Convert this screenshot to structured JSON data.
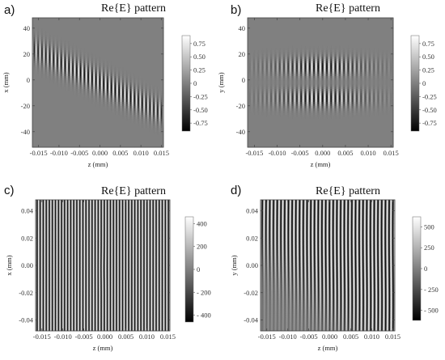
{
  "chart_data": [
    {
      "panel": "a)",
      "type": "heatmap",
      "title": "Re{E} pattern",
      "xlabel": "z (mm)",
      "ylabel": "x (mm)",
      "xlim": [
        -0.0165,
        0.0155
      ],
      "ylim": [
        -52,
        48
      ],
      "xticks": [
        -0.015,
        -0.01,
        -0.005,
        0.0,
        0.005,
        0.01,
        0.015
      ],
      "xtick_labels": [
        "-0.015",
        "-0.010",
        "-0.005",
        "0.000",
        "0.005",
        "0.010",
        "0.015"
      ],
      "yticks": [
        40,
        20,
        0,
        -20,
        -40
      ],
      "ytick_labels": [
        "40",
        "20",
        "0",
        "-20",
        "-40"
      ],
      "colorbar": {
        "range": [
          -0.9,
          0.9
        ],
        "ticks": [
          0.75,
          0.5,
          0.25,
          0,
          -0.25,
          -0.5,
          -0.75
        ],
        "tick_labels": [
          "0.75",
          "0.50",
          "0.25",
          "0",
          "-0.25",
          "-0.50",
          "-0.75"
        ]
      },
      "pattern": "single tilted beam, descending from x≈25 at z=-0.015 to x≈-25 at z=0.015"
    },
    {
      "panel": "b)",
      "type": "heatmap",
      "title": "Re{E} pattern",
      "xlabel": "z (mm)",
      "ylabel": "y (mm)",
      "xlim": [
        -0.0165,
        0.0155
      ],
      "ylim": [
        -52,
        48
      ],
      "xticks": [
        -0.015,
        -0.01,
        -0.005,
        0.0,
        0.005,
        0.01,
        0.015
      ],
      "xtick_labels": [
        "-0.015",
        "-0.010",
        "-0.005",
        "0.000",
        "0.005",
        "0.010",
        "0.015"
      ],
      "yticks": [
        40,
        20,
        0,
        -20,
        -40
      ],
      "ytick_labels": [
        "40",
        "20",
        "0",
        "-20",
        "-40"
      ],
      "colorbar": {
        "range": [
          -0.9,
          0.9
        ],
        "ticks": [
          0.75,
          0.5,
          0.25,
          0,
          -0.25,
          -0.5,
          -0.75
        ],
        "tick_labels": [
          "0.75",
          "0.50",
          "0.25",
          "0",
          "-0.25",
          "-0.50",
          "-0.75"
        ]
      },
      "pattern": "two lobes centred near y≈15 and y≈-15, strongest at z≈0"
    },
    {
      "panel": "c)",
      "type": "heatmap",
      "title": "Re{E} pattern",
      "xlabel": "z (mm)",
      "ylabel": "x (mm)",
      "xlim": [
        -0.0165,
        0.0155
      ],
      "ylim": [
        -0.048,
        0.048
      ],
      "xticks": [
        -0.015,
        -0.01,
        -0.005,
        0.0,
        0.005,
        0.01,
        0.015
      ],
      "xtick_labels": [
        "-0.015",
        "-0.010",
        "-0.005",
        "0.000",
        "0.005",
        "0.010",
        "0.015"
      ],
      "yticks": [
        0.04,
        0.02,
        0.0,
        -0.02,
        -0.04
      ],
      "ytick_labels": [
        "0.04",
        "0.02",
        "0.00",
        "-0.02",
        "-0.04"
      ],
      "colorbar": {
        "range": [
          -460,
          460
        ],
        "ticks": [
          400,
          200,
          0,
          -200,
          -400
        ],
        "tick_labels": [
          "400",
          "200",
          "0",
          "- 200",
          "- 400"
        ]
      },
      "pattern": "uniform high-contrast vertical fringes filling the plot"
    },
    {
      "panel": "d)",
      "type": "heatmap",
      "title": "Re{E} pattern",
      "xlabel": "z (mm)",
      "ylabel": "y (mm)",
      "xlim": [
        -0.0165,
        0.0155
      ],
      "ylim": [
        -0.048,
        0.048
      ],
      "xticks": [
        -0.015,
        -0.01,
        -0.005,
        0.0,
        0.005,
        0.01,
        0.015
      ],
      "xtick_labels": [
        "-0.015",
        "-0.010",
        "-0.005",
        "0.000",
        "0.005",
        "0.010",
        "0.015"
      ],
      "yticks": [
        0.04,
        0.02,
        0.0,
        -0.02,
        -0.04
      ],
      "ytick_labels": [
        "0.04",
        "0.02",
        "0.00",
        "-0.02",
        "-0.04"
      ],
      "colorbar": {
        "range": [
          -620,
          620
        ],
        "ticks": [
          500,
          250,
          0,
          -250,
          -500
        ],
        "tick_labels": [
          "500",
          "250",
          "0",
          "- 250",
          "- 500"
        ]
      },
      "pattern": "fringes strongest in upper-right, fading to lower-left across a diagonal"
    }
  ]
}
